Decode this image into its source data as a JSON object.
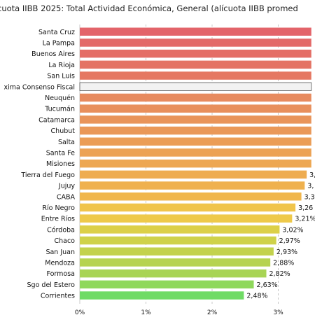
{
  "chart_data": {
    "type": "bar",
    "orientation": "horizontal",
    "title": "cuota IIBB 2025: Total Actividad Económica, General (alícuota IIBB promed",
    "categories": [
      "Santa Cruz",
      "La Pampa",
      "Buenos Aires",
      "La Rioja",
      "San Luis",
      "xima Consenso Fiscal",
      "Neuquén",
      "Tucumán",
      "Catamarca",
      "Chubut",
      "Salta",
      "Santa Fe",
      "Misiones",
      "Tierra del Fuego",
      "Jujuy",
      "CABA",
      "Río Negro",
      "Entre Ríos",
      "Córdoba",
      "Chaco",
      "San Juan",
      "Mendoza",
      "Formosa",
      "Sgo del Estero",
      "Corrientes"
    ],
    "values": [
      3.5,
      3.5,
      3.5,
      3.5,
      3.5,
      3.5,
      3.5,
      3.5,
      3.5,
      3.5,
      3.5,
      3.5,
      3.5,
      3.43,
      3.4,
      3.35,
      3.26,
      3.21,
      3.02,
      2.97,
      2.93,
      2.88,
      2.82,
      2.63,
      2.48
    ],
    "value_labels": [
      "",
      "",
      "",
      "",
      "",
      "",
      "",
      "",
      "",
      "",
      "",
      "",
      "",
      "3,",
      "3,",
      "3,3",
      "3,26",
      "3,21%",
      "3,02%",
      "2,97%",
      "2,93%",
      "2,88%",
      "2,82%",
      "2,63%",
      "2,48%"
    ],
    "colors": [
      "#e3646a",
      "#e36968",
      "#e46e66",
      "#e47364",
      "#e57862",
      "#f2f2f2",
      "#e78a5e",
      "#e88f5c",
      "#e9945a",
      "#ea9858",
      "#eb9d56",
      "#eca254",
      "#eda752",
      "#eeac50",
      "#efb14e",
      "#f0b64c",
      "#f0c44b",
      "#eec94a",
      "#dcd048",
      "#cfd24a",
      "#c3d24d",
      "#b6d350",
      "#a8d455",
      "#8fd85c",
      "#6fdb65"
    ],
    "highlight": "xima Consenso Fiscal",
    "xticks": [
      "0%",
      "1%",
      "2%",
      "3%"
    ],
    "xlim": [
      0,
      3.6
    ],
    "grid": true
  }
}
